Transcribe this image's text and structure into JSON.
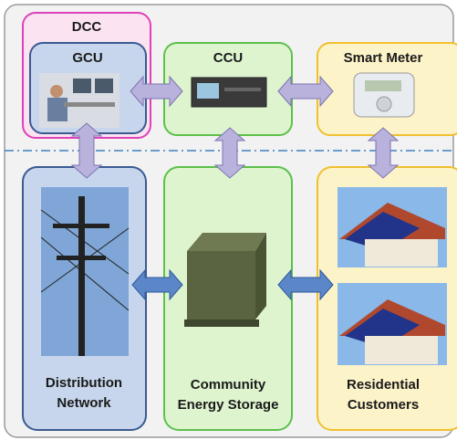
{
  "dcc": {
    "label": "DCC"
  },
  "gcu": {
    "label": "GCU"
  },
  "ccu": {
    "label": "CCU"
  },
  "smart_meter": {
    "label": "Smart Meter"
  },
  "distribution_network": {
    "label_lines": [
      "Distribution",
      "Network"
    ]
  },
  "community_energy_storage": {
    "label_lines": [
      "Community",
      "Energy Storage"
    ]
  },
  "residential_customers": {
    "label_lines": [
      "Residential",
      "Customers"
    ]
  }
}
